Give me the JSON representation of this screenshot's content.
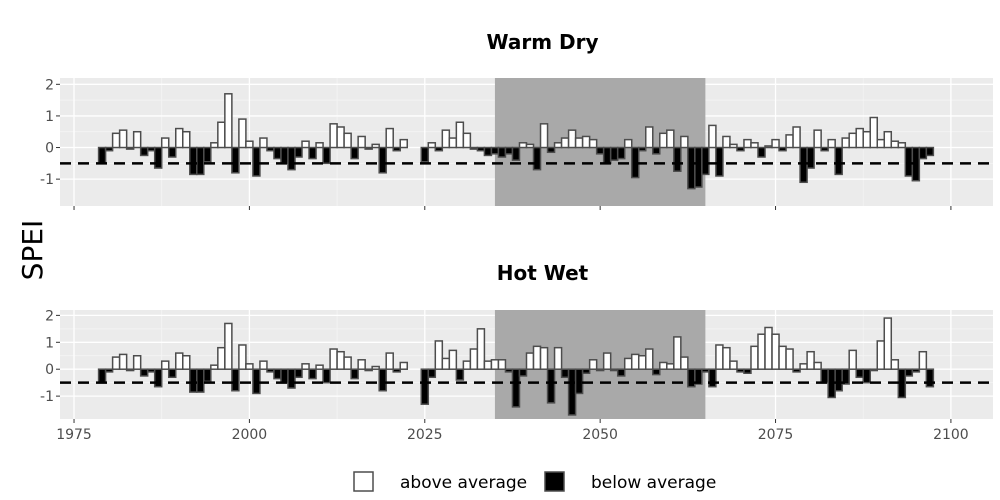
{
  "chart_data": {
    "type": "bar",
    "ylabel": "SPEI",
    "x_ticks": [
      1975,
      2000,
      2025,
      2050,
      2075,
      2100
    ],
    "y_ticks": [
      -1,
      0,
      1,
      2
    ],
    "xlim": [
      1973,
      2106
    ],
    "ylim": [
      -1.85,
      2.2
    ],
    "threshold": -0.5,
    "shaded_period": [
      2035,
      2065
    ],
    "legend": {
      "position": "bottom",
      "entries": [
        {
          "label": "above average",
          "color": "#ffffff"
        },
        {
          "label": "below average",
          "color": "#000000"
        }
      ]
    },
    "panels": [
      {
        "title": "Warm Dry",
        "series": [
          {
            "start_year": 1979,
            "values": [
              -0.5,
              -0.1,
              0.45,
              0.55,
              -0.05,
              0.5,
              -0.25,
              -0.1,
              -0.65,
              0.3,
              -0.3,
              0.6,
              0.5,
              -0.85,
              -0.85,
              -0.45,
              0.15,
              0.8,
              1.7,
              -0.8,
              0.9,
              0.2,
              -0.9,
              0.3,
              -0.1,
              -0.35,
              -0.5,
              -0.7,
              -0.3,
              0.2,
              -0.35,
              0.15,
              -0.5,
              0.75,
              0.65,
              0.45,
              -0.35,
              0.35,
              -0.05,
              0.1,
              -0.8,
              0.6,
              -0.1,
              0.25
            ]
          },
          {
            "start_year": 2025,
            "values": [
              -0.45,
              0.15,
              -0.1,
              0.55,
              0.3,
              0.8,
              0.45,
              -0.05,
              -0.1,
              -0.25,
              -0.2,
              -0.3,
              -0.2,
              -0.4,
              0.15,
              0.1,
              -0.7,
              0.75,
              -0.15,
              0.15,
              0.3,
              0.55,
              0.3,
              0.35,
              0.25,
              -0.2,
              -0.5,
              -0.4,
              -0.35,
              0.25,
              -0.95,
              -0.1,
              0.65,
              -0.2,
              0.45,
              0.55,
              -0.75,
              0.35,
              -1.3,
              -1.25,
              -0.85,
              0.7,
              -0.9,
              0.35,
              0.1,
              -0.1,
              0.25,
              0.15,
              -0.3,
              0.05,
              0.25,
              -0.1,
              0.4,
              0.65,
              -1.1,
              -0.65,
              0.55,
              -0.1,
              0.25,
              -0.85,
              0.3,
              0.45,
              0.6,
              0.5,
              0.95,
              0.25,
              0.5,
              0.2,
              0.15,
              -0.9,
              -1.05,
              -0.35,
              -0.25
            ]
          }
        ]
      },
      {
        "title": "Hot Wet",
        "series": [
          {
            "start_year": 1979,
            "values": [
              -0.5,
              -0.1,
              0.45,
              0.55,
              -0.05,
              0.5,
              -0.25,
              -0.1,
              -0.65,
              0.3,
              -0.3,
              0.6,
              0.5,
              -0.85,
              -0.85,
              -0.45,
              0.15,
              0.8,
              1.7,
              -0.8,
              0.9,
              0.2,
              -0.9,
              0.3,
              -0.1,
              -0.35,
              -0.5,
              -0.7,
              -0.3,
              0.2,
              -0.35,
              0.15,
              -0.5,
              0.75,
              0.65,
              0.45,
              -0.35,
              0.35,
              -0.05,
              0.1,
              -0.8,
              0.6,
              -0.1,
              0.25
            ]
          },
          {
            "start_year": 2025,
            "values": [
              -1.3,
              -0.3,
              1.05,
              0.4,
              0.7,
              -0.4,
              0.3,
              0.75,
              1.5,
              0.3,
              0.35,
              0.35,
              -0.1,
              -1.4,
              -0.25,
              0.6,
              0.85,
              0.8,
              -1.25,
              0.8,
              -0.3,
              -1.7,
              -0.9,
              -0.15,
              0.35,
              -0.05,
              0.6,
              -0.05,
              -0.25,
              0.4,
              0.55,
              0.5,
              0.75,
              -0.2,
              0.25,
              0.2,
              1.2,
              0.45,
              -0.65,
              -0.55,
              -0.1,
              -0.65,
              0.9,
              0.8,
              0.3,
              -0.1,
              -0.15,
              0.85,
              1.3,
              1.55,
              1.3,
              0.85,
              0.75,
              -0.1,
              0.2,
              0.65,
              0.25,
              -0.5,
              -1.05,
              -0.8,
              -0.55,
              0.7,
              -0.3,
              -0.5,
              -0.05,
              1.05,
              1.9,
              0.35,
              -1.05,
              -0.25,
              -0.1,
              0.65,
              -0.65
            ]
          }
        ]
      }
    ]
  }
}
